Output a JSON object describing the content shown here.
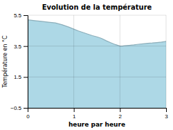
{
  "chart_data": {
    "type": "area",
    "title": "Evolution de la température",
    "xlabel": "heure par heure",
    "ylabel": "Température en °C",
    "x": [
      0,
      0.15,
      0.3,
      0.45,
      0.6,
      0.75,
      0.9,
      1.0,
      1.1,
      1.2,
      1.3,
      1.4,
      1.5,
      1.6,
      1.7,
      1.8,
      1.9,
      2.0,
      2.05,
      2.1,
      2.2,
      2.3,
      2.4,
      2.5,
      2.6,
      2.7,
      2.8,
      2.9,
      3.0
    ],
    "values": [
      5.2,
      5.15,
      5.1,
      5.05,
      5.0,
      4.88,
      4.72,
      4.6,
      4.48,
      4.38,
      4.28,
      4.18,
      4.1,
      4.0,
      3.85,
      3.72,
      3.6,
      3.5,
      3.5,
      3.52,
      3.55,
      3.58,
      3.62,
      3.65,
      3.68,
      3.7,
      3.73,
      3.76,
      3.8
    ],
    "color": "#add8e6",
    "xlim": [
      0,
      3
    ],
    "ylim": [
      -0.5,
      5.5
    ],
    "xticks": [
      0,
      1,
      2,
      3
    ],
    "yticks": [
      {
        "value": -0.5,
        "label": "−0.5"
      },
      1.5,
      3.5,
      5.5
    ],
    "grid": true
  }
}
